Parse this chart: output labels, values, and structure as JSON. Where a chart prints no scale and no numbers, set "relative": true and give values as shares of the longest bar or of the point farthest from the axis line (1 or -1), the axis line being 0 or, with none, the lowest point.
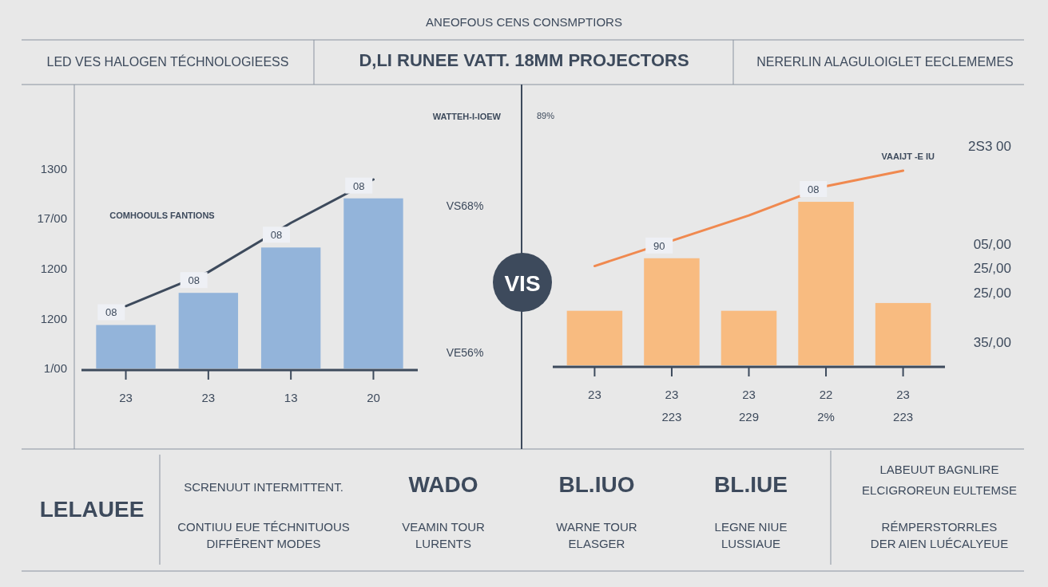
{
  "chart_data": [
    {
      "type": "other",
      "title": "ANEOFOUS CENS CONSMPTIORS",
      "annotations": [
        "LED VES HALOGEN TÉCHNOLOGIEESS",
        "D,LI RUNEE VATT. 18MM PROJECTORS",
        "NERERLIN ALAGULOIGLET EECLEMEMES"
      ]
    },
    {
      "type": "bar",
      "relative": true,
      "categories": [
        "23",
        "23",
        "13",
        "20"
      ],
      "series": [
        {
          "color": "#93b4da",
          "values": [
            0.23,
            0.4,
            0.64,
            0.9
          ]
        },
        {
          "type": "line",
          "color": "#3d4a5c",
          "values": [
            0.33,
            0.51,
            0.77,
            1
          ]
        }
      ],
      "annotations": [
        "1300",
        "17/00",
        "1200",
        "1200",
        "1/00",
        "WATTEH-I-IOEW",
        "COMHOOULS FANTIONS",
        "VS68%",
        "VE56%",
        "VIS",
        "08",
        "08",
        "08",
        "08"
      ]
    },
    {
      "type": "bar",
      "relative": true,
      "categories": [
        "23",
        "23\n223",
        "23\n229",
        "22\n2%",
        "23\n223"
      ],
      "series": [
        {
          "color": "#f8bb80",
          "values": [
            0.28,
            0.55,
            0.28,
            0.84,
            0.32
          ]
        },
        {
          "type": "line",
          "color": "#f0894f",
          "values": [
            0.51,
            0.64,
            0.77,
            0.92,
            1
          ]
        }
      ],
      "annotations": [
        "89%",
        "VAAIJT -E IU",
        "2S3 00",
        "05/,00",
        "25/,00",
        "25/,00",
        "35/,00",
        "90",
        "08"
      ]
    },
    {
      "type": "other",
      "title": "LELAUEE",
      "annotations": [
        "SCRENUUT INTERMITTENT.",
        "CONTIUU EUE TÉCHNITUOUS",
        "DIFFĒRENT MODES",
        "WADO",
        "VEAMIN TOUR",
        "LURENTS",
        "BL.IUO",
        "WARNE TOUR",
        "ELASGER",
        "BL.IUE",
        "LEGNE NIUE",
        "LUSSIAUE",
        "LABEUUT BAGNLIRE",
        "ELCIGROREUN EULTEMSE",
        "RÉMPERSTORRLES",
        "DER AIEN LUÉCALYEUE"
      ]
    }
  ]
}
